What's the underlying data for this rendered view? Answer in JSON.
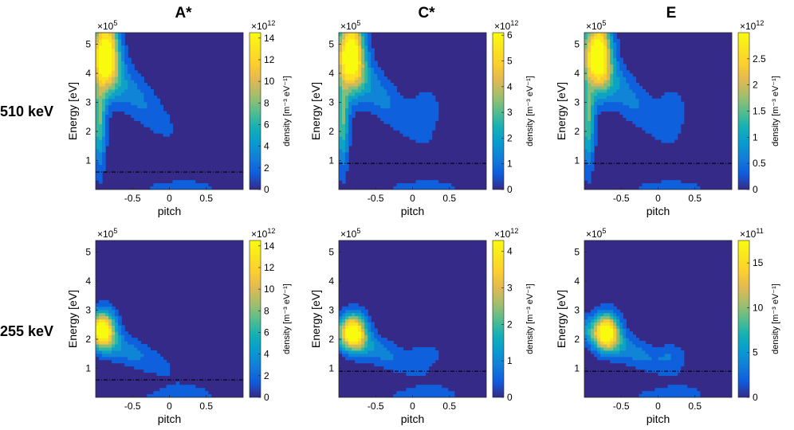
{
  "figure": {
    "column_titles": [
      "A*",
      "C*",
      "E"
    ],
    "row_labels": [
      "510 keV",
      "255 keV"
    ]
  },
  "chart_data": [
    {
      "type": "heatmap",
      "row": 0,
      "col": 0,
      "title": "A*",
      "row_label": "510 keV",
      "xlabel": "pitch",
      "ylabel": "Energy [eV]",
      "y_exponent": "×10",
      "y_exponent_power": "5",
      "xlim": [
        -1,
        1
      ],
      "ylim": [
        0,
        5.4
      ],
      "xticks": [
        -0.5,
        0,
        0.5
      ],
      "xtick_labels": [
        "-0.5",
        "0",
        "0.5"
      ],
      "yticks": [
        1,
        2,
        3,
        4,
        5
      ],
      "ytick_labels": [
        "1",
        "2",
        "3",
        "4",
        "5"
      ],
      "colorbar": {
        "label": "density [m⁻³ eV⁻¹]",
        "exponent": "×10",
        "exponent_power": "12",
        "range": [
          0,
          14.5
        ],
        "ticks": [
          0,
          2,
          4,
          6,
          8,
          10,
          12,
          14
        ],
        "tick_labels": [
          "0",
          "2",
          "4",
          "6",
          "8",
          "10",
          "12",
          "14"
        ]
      },
      "peak": {
        "pitch": -0.85,
        "energy": 4.8,
        "value": 14.3
      },
      "dashed_line_energy": 0.6,
      "contour_levels": 9
    },
    {
      "type": "heatmap",
      "row": 0,
      "col": 1,
      "title": "C*",
      "row_label": "510 keV",
      "xlabel": "pitch",
      "ylabel": "Energy [eV]",
      "y_exponent": "×10",
      "y_exponent_power": "5",
      "xlim": [
        -1,
        1
      ],
      "ylim": [
        0,
        5.4
      ],
      "xticks": [
        -0.5,
        0,
        0.5
      ],
      "xtick_labels": [
        "-0.5",
        "0",
        "0.5"
      ],
      "yticks": [
        1,
        2,
        3,
        4,
        5
      ],
      "ytick_labels": [
        "1",
        "2",
        "3",
        "4",
        "5"
      ],
      "colorbar": {
        "label": "density [m⁻³ eV⁻¹]",
        "exponent": "×10",
        "exponent_power": "12",
        "range": [
          0,
          6.1
        ],
        "ticks": [
          0,
          1,
          2,
          3,
          4,
          5,
          6
        ],
        "tick_labels": [
          "0",
          "1",
          "2",
          "3",
          "4",
          "5",
          "6"
        ]
      },
      "peak": {
        "pitch": -0.82,
        "energy": 4.8,
        "value": 6.0
      },
      "dashed_line_energy": 0.9,
      "contour_levels": 9
    },
    {
      "type": "heatmap",
      "row": 0,
      "col": 2,
      "title": "E",
      "row_label": "510 keV",
      "xlabel": "pitch",
      "ylabel": "Energy [eV]",
      "y_exponent": "×10",
      "y_exponent_power": "5",
      "xlim": [
        -1,
        1
      ],
      "ylim": [
        0,
        5.4
      ],
      "xticks": [
        -0.5,
        0,
        0.5
      ],
      "xtick_labels": [
        "-0.5",
        "0",
        "0.5"
      ],
      "yticks": [
        1,
        2,
        3,
        4,
        5
      ],
      "ytick_labels": [
        "1",
        "2",
        "3",
        "4",
        "5"
      ],
      "colorbar": {
        "label": "density [m⁻³ eV⁻¹]",
        "exponent": "×10",
        "exponent_power": "12",
        "range": [
          0,
          3.0
        ],
        "ticks": [
          0,
          0.5,
          1,
          1.5,
          2,
          2.5
        ],
        "tick_labels": [
          "0",
          "0.5",
          "1",
          "1.5",
          "2",
          "2.5"
        ]
      },
      "peak": {
        "pitch": -0.8,
        "energy": 4.8,
        "value": 3.0
      },
      "dashed_line_energy": 0.9,
      "contour_levels": 9
    },
    {
      "type": "heatmap",
      "row": 1,
      "col": 0,
      "title": "A*",
      "row_label": "255 keV",
      "xlabel": "pitch",
      "ylabel": "Energy [eV]",
      "y_exponent": "×10",
      "y_exponent_power": "5",
      "xlim": [
        -1,
        1
      ],
      "ylim": [
        0,
        5.4
      ],
      "xticks": [
        -0.5,
        0,
        0.5
      ],
      "xtick_labels": [
        "-0.5",
        "0",
        "0.5"
      ],
      "yticks": [
        1,
        2,
        3,
        4,
        5
      ],
      "ytick_labels": [
        "1",
        "2",
        "3",
        "4",
        "5"
      ],
      "colorbar": {
        "label": "density [m⁻³ eV⁻¹]",
        "exponent": "×10",
        "exponent_power": "12",
        "range": [
          0,
          14.5
        ],
        "ticks": [
          0,
          2,
          4,
          6,
          8,
          10,
          12,
          14
        ],
        "tick_labels": [
          "0",
          "2",
          "4",
          "6",
          "8",
          "10",
          "12",
          "14"
        ]
      },
      "peak": {
        "pitch": -0.9,
        "energy": 2.4,
        "value": 14.0
      },
      "dashed_line_energy": 0.6,
      "contour_levels": 9
    },
    {
      "type": "heatmap",
      "row": 1,
      "col": 1,
      "title": "C*",
      "row_label": "255 keV",
      "xlabel": "pitch",
      "ylabel": "Energy [eV]",
      "y_exponent": "×10",
      "y_exponent_power": "5",
      "xlim": [
        -1,
        1
      ],
      "ylim": [
        0,
        5.4
      ],
      "xticks": [
        -0.5,
        0,
        0.5
      ],
      "xtick_labels": [
        "-0.5",
        "0",
        "0.5"
      ],
      "yticks": [
        1,
        2,
        3,
        4,
        5
      ],
      "ytick_labels": [
        "1",
        "2",
        "3",
        "4",
        "5"
      ],
      "colorbar": {
        "label": "density [m⁻³ eV⁻¹]",
        "exponent": "×10",
        "exponent_power": "12",
        "range": [
          0,
          4.3
        ],
        "ticks": [
          0,
          1,
          2,
          3,
          4
        ],
        "tick_labels": [
          "0",
          "1",
          "2",
          "3",
          "4"
        ]
      },
      "peak": {
        "pitch": -0.8,
        "energy": 2.3,
        "value": 4.2
      },
      "dashed_line_energy": 0.9,
      "contour_levels": 9
    },
    {
      "type": "heatmap",
      "row": 1,
      "col": 2,
      "title": "E",
      "row_label": "255 keV",
      "xlabel": "pitch",
      "ylabel": "Energy [eV]",
      "y_exponent": "×10",
      "y_exponent_power": "5",
      "xlim": [
        -1,
        1
      ],
      "ylim": [
        0,
        5.4
      ],
      "xticks": [
        -0.5,
        0,
        0.5
      ],
      "xtick_labels": [
        "-0.5",
        "0",
        "0.5"
      ],
      "yticks": [
        1,
        2,
        3,
        4,
        5
      ],
      "ytick_labels": [
        "1",
        "2",
        "3",
        "4",
        "5"
      ],
      "colorbar": {
        "label": "density [m⁻³ eV⁻¹]",
        "exponent": "×10",
        "exponent_power": "11",
        "range": [
          0,
          17.5
        ],
        "ticks": [
          0,
          5,
          10,
          15
        ],
        "tick_labels": [
          "0",
          "5",
          "10",
          "15"
        ]
      },
      "peak": {
        "pitch": -0.7,
        "energy": 2.3,
        "value": 17.0
      },
      "dashed_line_energy": 0.9,
      "contour_levels": 9
    }
  ]
}
